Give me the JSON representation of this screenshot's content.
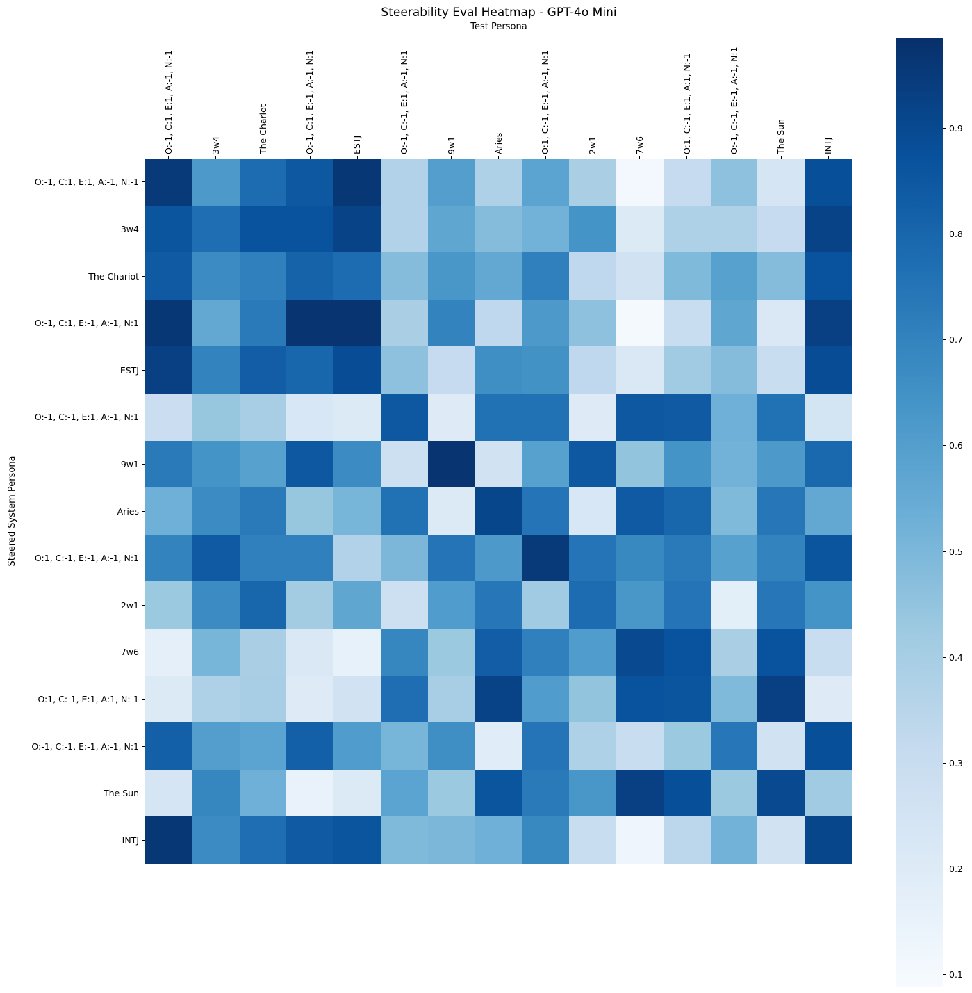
{
  "figure": {
    "title": "Steerability Eval Heatmap - GPT-4o Mini",
    "x_axis_title": "Test Persona",
    "y_axis_title": "Steered System Persona"
  },
  "colorbar": {
    "tick_labels": [
      "0.9",
      "0.8",
      "0.7",
      "0.6",
      "0.5",
      "0.4",
      "0.3",
      "0.2",
      "0.1"
    ],
    "tick_values": [
      0.9,
      0.8,
      0.7,
      0.6,
      0.5,
      0.4,
      0.3,
      0.2,
      0.1
    ],
    "vmin": 0.088,
    "vmax": 0.985
  },
  "chart_data": {
    "type": "heatmap",
    "title": "Steerability Eval Heatmap - GPT-4o Mini",
    "xlabel": "Test Persona",
    "ylabel": "Steered System Persona",
    "colormap": "Blues",
    "legend_position": "right-colorbar",
    "grid": false,
    "vmin": 0.088,
    "vmax": 0.985,
    "colormap_stops": [
      [
        0.0,
        [
          247,
          251,
          255
        ]
      ],
      [
        0.125,
        [
          222,
          235,
          247
        ]
      ],
      [
        0.25,
        [
          198,
          219,
          239
        ]
      ],
      [
        0.375,
        [
          158,
          202,
          225
        ]
      ],
      [
        0.5,
        [
          107,
          174,
          214
        ]
      ],
      [
        0.625,
        [
          66,
          146,
          198
        ]
      ],
      [
        0.75,
        [
          33,
          113,
          181
        ]
      ],
      [
        0.875,
        [
          8,
          81,
          156
        ]
      ],
      [
        1.0,
        [
          8,
          48,
          107
        ]
      ]
    ],
    "x_labels": [
      "O:-1, C:1, E:1, A:-1, N:-1",
      "3w4",
      "The Chariot",
      "O:-1, C:1, E:-1, A:-1, N:1",
      "ESTJ",
      "O:-1, C:-1, E:1, A:-1, N:1",
      "9w1",
      "Aries",
      "O:1, C:-1, E:-1, A:-1, N:1",
      "2w1",
      "7w6",
      "O:1, C:-1, E:1, A:1, N:-1",
      "O:-1, C:-1, E:-1, A:-1, N:1",
      "The Sun",
      "INTJ"
    ],
    "y_labels": [
      "O:-1, C:1, E:1, A:-1, N:-1",
      "3w4",
      "The Chariot",
      "O:-1, C:1, E:-1, A:-1, N:1",
      "ESTJ",
      "O:-1, C:-1, E:1, A:-1, N:1",
      "9w1",
      "Aries",
      "O:1, C:-1, E:-1, A:-1, N:1",
      "2w1",
      "7w6",
      "O:1, C:-1, E:1, A:1, N:-1",
      "O:-1, C:-1, E:-1, A:-1, N:1",
      "The Sun",
      "INTJ"
    ],
    "values": [
      [
        0.95,
        0.62,
        0.78,
        0.85,
        0.96,
        0.37,
        0.6,
        0.38,
        0.58,
        0.39,
        0.11,
        0.31,
        0.46,
        0.24,
        0.88
      ],
      [
        0.86,
        0.77,
        0.87,
        0.87,
        0.92,
        0.37,
        0.57,
        0.48,
        0.52,
        0.64,
        0.21,
        0.38,
        0.38,
        0.31,
        0.92
      ],
      [
        0.84,
        0.67,
        0.71,
        0.81,
        0.78,
        0.48,
        0.63,
        0.56,
        0.71,
        0.33,
        0.26,
        0.49,
        0.59,
        0.48,
        0.87
      ],
      [
        0.96,
        0.56,
        0.73,
        0.97,
        0.97,
        0.39,
        0.7,
        0.33,
        0.62,
        0.46,
        0.1,
        0.3,
        0.57,
        0.22,
        0.93
      ],
      [
        0.93,
        0.7,
        0.83,
        0.8,
        0.89,
        0.46,
        0.31,
        0.66,
        0.65,
        0.33,
        0.22,
        0.42,
        0.48,
        0.3,
        0.89
      ],
      [
        0.29,
        0.44,
        0.4,
        0.23,
        0.21,
        0.85,
        0.2,
        0.76,
        0.76,
        0.2,
        0.85,
        0.84,
        0.53,
        0.76,
        0.25
      ],
      [
        0.73,
        0.64,
        0.59,
        0.85,
        0.67,
        0.28,
        0.97,
        0.26,
        0.59,
        0.85,
        0.45,
        0.64,
        0.52,
        0.62,
        0.79
      ],
      [
        0.53,
        0.67,
        0.73,
        0.44,
        0.51,
        0.76,
        0.21,
        0.91,
        0.75,
        0.23,
        0.84,
        0.8,
        0.49,
        0.74,
        0.56
      ],
      [
        0.7,
        0.84,
        0.71,
        0.71,
        0.37,
        0.5,
        0.75,
        0.62,
        0.95,
        0.75,
        0.68,
        0.73,
        0.59,
        0.7,
        0.86
      ],
      [
        0.43,
        0.67,
        0.8,
        0.41,
        0.57,
        0.28,
        0.61,
        0.74,
        0.42,
        0.78,
        0.63,
        0.75,
        0.18,
        0.74,
        0.64
      ],
      [
        0.17,
        0.51,
        0.39,
        0.22,
        0.16,
        0.69,
        0.43,
        0.83,
        0.71,
        0.61,
        0.9,
        0.87,
        0.39,
        0.87,
        0.3
      ],
      [
        0.21,
        0.38,
        0.4,
        0.2,
        0.26,
        0.77,
        0.4,
        0.92,
        0.61,
        0.45,
        0.87,
        0.86,
        0.49,
        0.93,
        0.2
      ],
      [
        0.82,
        0.6,
        0.58,
        0.82,
        0.61,
        0.51,
        0.66,
        0.19,
        0.75,
        0.38,
        0.3,
        0.43,
        0.74,
        0.26,
        0.88
      ],
      [
        0.24,
        0.69,
        0.53,
        0.15,
        0.21,
        0.58,
        0.43,
        0.86,
        0.73,
        0.63,
        0.93,
        0.88,
        0.43,
        0.9,
        0.42
      ],
      [
        0.96,
        0.67,
        0.77,
        0.84,
        0.86,
        0.49,
        0.5,
        0.53,
        0.68,
        0.3,
        0.13,
        0.34,
        0.52,
        0.26,
        0.91
      ]
    ]
  }
}
